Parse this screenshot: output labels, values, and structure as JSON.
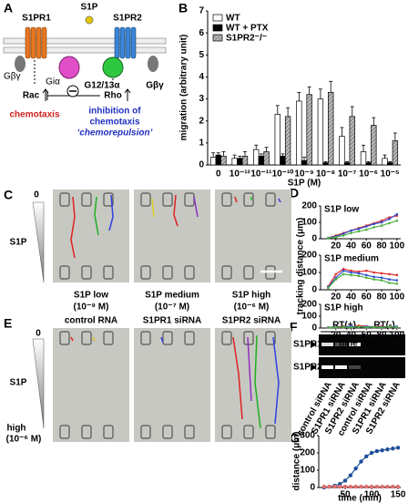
{
  "panel_labels": [
    "A",
    "B",
    "C",
    "D",
    "E",
    "F",
    "G"
  ],
  "diagram": {
    "ligand": "S1P",
    "receptor1": "S1PR1",
    "receptor2": "S1PR2",
    "gbg_left": "Gβγ",
    "gi": "Giα",
    "g1213": "G12/13α",
    "gbg_right": "Gβγ",
    "rac": "Rac",
    "rho": "Rho",
    "chemotaxis": "chemotaxis",
    "inhibition": [
      "inhibition of",
      "chemotaxis",
      "‘chemorepulsion’"
    ]
  },
  "chart_data": [
    {
      "type": "bar",
      "ylabel": "migration (arbitrary unit)",
      "xlabel": "S1P (M)",
      "categories": [
        "0",
        "10⁻¹²",
        "10⁻¹¹",
        "10⁻¹⁰",
        "10⁻⁹",
        "10⁻⁸",
        "10⁻⁷",
        "10⁻⁶",
        "10⁻⁵"
      ],
      "series": [
        {
          "name": "WT",
          "color": "#ffffff",
          "values": [
            0.35,
            0.3,
            0.7,
            2.3,
            2.9,
            3.0,
            1.3,
            0.6,
            0.3
          ],
          "errors": [
            0.2,
            0.15,
            0.2,
            0.4,
            0.4,
            0.45,
            0.4,
            0.3,
            0.15
          ]
        },
        {
          "name": "WT + PTX",
          "color": "#000000",
          "values": [
            0.45,
            0.3,
            0.4,
            0.4,
            0.2,
            0.1,
            0.1,
            0.1,
            0.1
          ],
          "errors": [
            0.1,
            0.1,
            0.1,
            0.1,
            0.15,
            0.05,
            0.05,
            0.05,
            0.05
          ]
        },
        {
          "name": "S1PR2⁻/⁻",
          "color": "#aaaaaa",
          "pattern": "hatch",
          "values": [
            0.4,
            0.4,
            0.6,
            2.2,
            3.2,
            3.3,
            2.2,
            1.8,
            1.1
          ],
          "errors": [
            0.2,
            0.2,
            0.2,
            0.4,
            0.35,
            0.5,
            0.45,
            0.35,
            0.35
          ]
        }
      ],
      "ylim": [
        0,
        7
      ],
      "yticks": [
        0,
        1,
        2,
        3,
        4,
        5,
        6,
        7
      ],
      "legend": "upper left"
    },
    {
      "type": "line",
      "title": "S1P low",
      "x": [
        10,
        20,
        30,
        40,
        50,
        60,
        70,
        80,
        90,
        100
      ],
      "series": [
        {
          "color": "#e03030",
          "values": [
            5,
            20,
            35,
            50,
            65,
            80,
            95,
            110,
            130,
            140
          ]
        },
        {
          "color": "#3050d0",
          "values": [
            5,
            15,
            30,
            50,
            60,
            75,
            90,
            100,
            120,
            150
          ]
        },
        {
          "color": "#50b040",
          "values": [
            3,
            10,
            20,
            35,
            45,
            55,
            70,
            80,
            95,
            110
          ]
        }
      ],
      "xlim": [
        0,
        105
      ],
      "xticks": [
        20,
        40,
        60,
        80,
        100
      ],
      "ylim": [
        0,
        200
      ],
      "yticks": [
        0,
        100,
        200
      ]
    },
    {
      "type": "line",
      "title": "S1P medium",
      "ylabel": "tracking distance (μm)",
      "x": [
        10,
        20,
        30,
        40,
        50,
        60,
        70,
        80,
        90,
        100
      ],
      "series": [
        {
          "color": "#e03030",
          "values": [
            20,
            90,
            120,
            110,
            105,
            110,
            100,
            95,
            90,
            85
          ]
        },
        {
          "color": "#3050d0",
          "values": [
            15,
            70,
            110,
            100,
            95,
            85,
            75,
            70,
            60,
            55
          ]
        },
        {
          "color": "#50b040",
          "values": [
            10,
            60,
            90,
            85,
            80,
            70,
            60,
            55,
            40,
            35
          ]
        }
      ],
      "xlim": [
        0,
        105
      ],
      "xticks": [
        20,
        40,
        60,
        80,
        100
      ],
      "ylim": [
        0,
        200
      ],
      "yticks": [
        0,
        100,
        200
      ]
    },
    {
      "type": "line",
      "title": "S1P high",
      "xlabel": "time (min)",
      "x": [
        10,
        20,
        30,
        40,
        50,
        60,
        70,
        80,
        90,
        100
      ],
      "series": [
        {
          "color": "#e03030",
          "values": [
            5,
            10,
            15,
            10,
            20,
            15,
            10,
            15,
            5,
            10
          ]
        },
        {
          "color": "#3050d0",
          "values": [
            5,
            8,
            10,
            15,
            10,
            12,
            8,
            10,
            8,
            12
          ]
        },
        {
          "color": "#50b040",
          "values": [
            3,
            5,
            8,
            5,
            10,
            5,
            8,
            5,
            10,
            5
          ]
        }
      ],
      "xlim": [
        0,
        105
      ],
      "xticks": [
        20,
        40,
        60,
        80,
        100
      ],
      "ylim": [
        0,
        200
      ],
      "yticks": [
        0,
        100,
        200
      ]
    },
    {
      "type": "line",
      "ylabel": "distance (μm)",
      "xlabel": "time (min)",
      "x": [
        10,
        20,
        30,
        40,
        50,
        60,
        70,
        80,
        90,
        100,
        110,
        120,
        130,
        140,
        150
      ],
      "series": [
        {
          "color": "#1f4e9a",
          "values": [
            0,
            5,
            10,
            20,
            40,
            70,
            110,
            150,
            180,
            200,
            210,
            215,
            220,
            225,
            230
          ]
        },
        {
          "color": "#e07070",
          "values": [
            5,
            5,
            5,
            5,
            5,
            5,
            5,
            5,
            5,
            5,
            5,
            5,
            5,
            5,
            5
          ]
        }
      ],
      "xlim": [
        0,
        155
      ],
      "xticks": [
        50,
        100,
        150
      ],
      "ylim": [
        0,
        300
      ],
      "yticks": [
        0,
        100,
        200,
        300
      ]
    }
  ],
  "microscopy_c": {
    "top": "0",
    "gradient": "S1P",
    "panels": [
      [
        "S1P low",
        "(10⁻⁹ M)"
      ],
      [
        "S1P medium",
        "(10⁻⁷ M)"
      ],
      [
        "S1P high",
        "(10⁻⁶ M)"
      ]
    ]
  },
  "microscopy_e": {
    "top": "0",
    "gradient": "S1P",
    "bottom": [
      "high",
      "(10⁻⁶ M)"
    ],
    "panels": [
      "control RNA",
      "S1PR1 siRNA",
      "S1PR2 siRNA"
    ]
  },
  "gel": {
    "groups": [
      "RT(+)",
      "RT(-)"
    ],
    "rows": [
      "S1PR1",
      "S1PR2"
    ],
    "lanes": [
      "control siRNA",
      "S1PR1 siRNA",
      "S1PR2 siRNA",
      "control siRNA",
      "S1PR1 siRNA",
      "S1PR2 siRNA"
    ]
  }
}
